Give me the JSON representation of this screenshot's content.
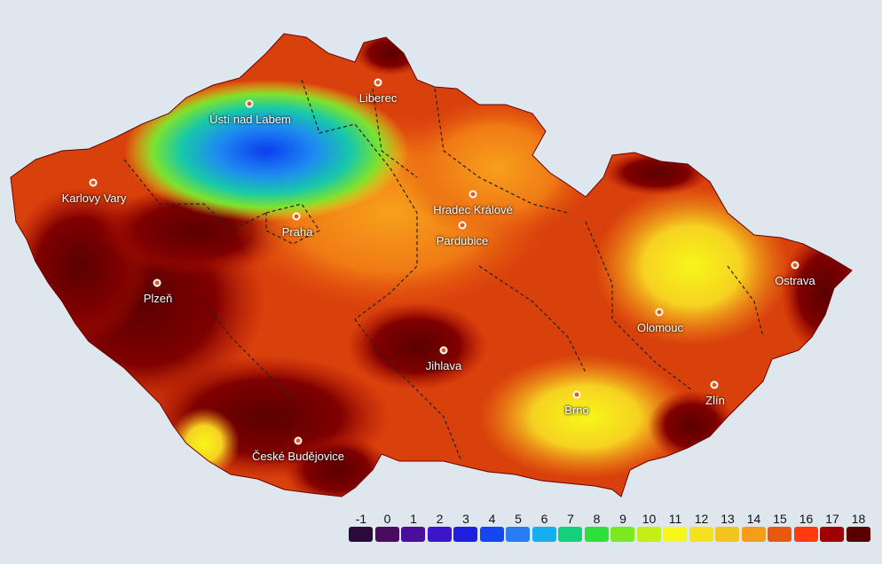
{
  "map": {
    "background": "#dfe7ee",
    "country_fill_dark": "#7a0000",
    "regions_border": "#222222",
    "cities": [
      {
        "name": "Ústí nad Labem",
        "label": "Ústí nad Labem"
      },
      {
        "name": "Liberec",
        "label": "Liberec"
      },
      {
        "name": "Karlovy Vary",
        "label": "Karlovy Vary"
      },
      {
        "name": "Praha",
        "label": "Praha"
      },
      {
        "name": "Hradec Králové",
        "label": "Hradec Králové"
      },
      {
        "name": "Pardubice",
        "label": "Pardubice"
      },
      {
        "name": "Plzeň",
        "label": "Plzeň"
      },
      {
        "name": "Jihlava",
        "label": "Jihlava"
      },
      {
        "name": "Olomouc",
        "label": "Olomouc"
      },
      {
        "name": "Ostrava",
        "label": "Ostrava"
      },
      {
        "name": "Brno",
        "label": "Brno"
      },
      {
        "name": "Zlín",
        "label": "Zlín"
      },
      {
        "name": "České Budějovice",
        "label": "České Budějovice"
      }
    ]
  },
  "legend": {
    "values": [
      "-1",
      "0",
      "1",
      "2",
      "3",
      "4",
      "5",
      "6",
      "7",
      "8",
      "9",
      "10",
      "11",
      "12",
      "13",
      "14",
      "15",
      "16",
      "17",
      "18"
    ],
    "colors": [
      "#2a0a3a",
      "#4a0c5e",
      "#4b0e9a",
      "#3a16c8",
      "#1f1fe0",
      "#1447f0",
      "#2a7cf2",
      "#17aef0",
      "#14cf7c",
      "#2ee03a",
      "#7be820",
      "#c2f016",
      "#f7f71a",
      "#f5e21e",
      "#f4c521",
      "#f69c1b",
      "#e8590f",
      "#ff3a10",
      "#a00000",
      "#5a0000"
    ]
  }
}
